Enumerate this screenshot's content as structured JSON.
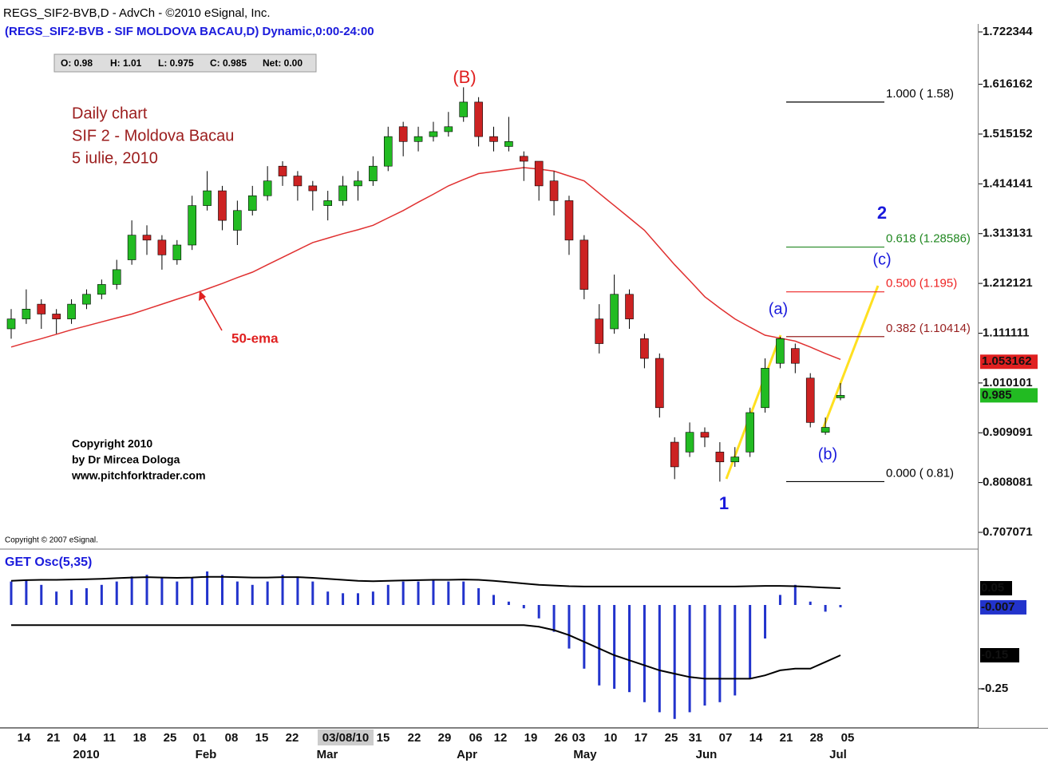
{
  "chart_data": {
    "type": "candlestick",
    "window_title": "REGS_SIF2-BVB,D - AdvCh - ©2010 eSignal, Inc.",
    "title": "(REGS_SIF2-BVB - SIF MOLDOVA BACAU,D) Dynamic,0:00-24:00",
    "ohlc_box": [
      "O: 0.98",
      "H: 1.01",
      "L: 0.975",
      "C: 0.985",
      "Net: 0.00"
    ],
    "notes": [
      "Daily chart",
      "SIF 2 - Moldova Bacau",
      "5 iulie, 2010"
    ],
    "copyright": [
      "Copyright 2010",
      "by Dr Mircea Dologa",
      "www.pitchforktrader.com"
    ],
    "esignal_copyright": "Copyright © 2007 eSignal.",
    "annotations": {
      "B": "(B)",
      "w2": "2",
      "c": "(c)",
      "a": "(a)",
      "b": "(b)",
      "w1": "1",
      "ema": "50-ema"
    },
    "x_labels": [
      "14",
      "21",
      "04",
      "11",
      "18",
      "25",
      "01",
      "08",
      "15",
      "22",
      "03/08/10",
      "15",
      "22",
      "29",
      "06",
      "12",
      "19",
      "26",
      "03",
      "10",
      "17",
      "25",
      "31",
      "07",
      "14",
      "21",
      "28",
      "05"
    ],
    "month_labels": [
      "2010",
      "Feb",
      "Mar",
      "Apr",
      "May",
      "Jun",
      "Jul"
    ],
    "ylim": [
      0.707071,
      1.722344
    ],
    "yticks": [
      1.722344,
      1.616162,
      1.515152,
      1.414141,
      1.313131,
      1.212121,
      1.111111,
      1.010101,
      0.909091,
      0.808081,
      0.707071
    ],
    "price_markers": [
      {
        "value": 1.053162,
        "color": "#e02020"
      },
      {
        "value": 0.985,
        "color": "#22bb22"
      }
    ],
    "fib_levels": [
      {
        "label": "1.000 ( 1.58)",
        "price": 1.58,
        "color": "#000000"
      },
      {
        "label": "0.618 (1.28586)",
        "price": 1.28586,
        "color": "#228822"
      },
      {
        "label": "0.500 (1.195)",
        "price": 1.195,
        "color": "#ee2222"
      },
      {
        "label": "0.382 (1.10414)",
        "price": 1.10414,
        "color": "#992222"
      },
      {
        "label": "0.000 ( 0.81)",
        "price": 0.81,
        "color": "#000000"
      }
    ],
    "up_color": "#22bb22",
    "down_color": "#cc2222",
    "ema_color": "#e03030",
    "candles": [
      [
        1.12,
        1.16,
        1.1,
        1.14
      ],
      [
        1.14,
        1.2,
        1.13,
        1.16
      ],
      [
        1.17,
        1.18,
        1.12,
        1.15
      ],
      [
        1.15,
        1.16,
        1.11,
        1.14
      ],
      [
        1.14,
        1.18,
        1.13,
        1.17
      ],
      [
        1.17,
        1.2,
        1.16,
        1.19
      ],
      [
        1.19,
        1.22,
        1.18,
        1.21
      ],
      [
        1.21,
        1.26,
        1.2,
        1.24
      ],
      [
        1.26,
        1.34,
        1.25,
        1.31
      ],
      [
        1.31,
        1.33,
        1.27,
        1.3
      ],
      [
        1.3,
        1.31,
        1.24,
        1.27
      ],
      [
        1.26,
        1.3,
        1.25,
        1.29
      ],
      [
        1.29,
        1.39,
        1.28,
        1.37
      ],
      [
        1.37,
        1.44,
        1.36,
        1.4
      ],
      [
        1.4,
        1.41,
        1.32,
        1.34
      ],
      [
        1.32,
        1.38,
        1.29,
        1.36
      ],
      [
        1.36,
        1.41,
        1.35,
        1.39
      ],
      [
        1.39,
        1.45,
        1.38,
        1.42
      ],
      [
        1.45,
        1.46,
        1.41,
        1.43
      ],
      [
        1.43,
        1.44,
        1.38,
        1.41
      ],
      [
        1.41,
        1.42,
        1.36,
        1.4
      ],
      [
        1.37,
        1.4,
        1.34,
        1.38
      ],
      [
        1.38,
        1.43,
        1.37,
        1.41
      ],
      [
        1.41,
        1.44,
        1.38,
        1.42
      ],
      [
        1.42,
        1.47,
        1.41,
        1.45
      ],
      [
        1.45,
        1.53,
        1.44,
        1.51
      ],
      [
        1.53,
        1.54,
        1.47,
        1.5
      ],
      [
        1.5,
        1.53,
        1.48,
        1.51
      ],
      [
        1.51,
        1.54,
        1.5,
        1.52
      ],
      [
        1.52,
        1.56,
        1.51,
        1.53
      ],
      [
        1.55,
        1.61,
        1.54,
        1.58
      ],
      [
        1.58,
        1.59,
        1.49,
        1.51
      ],
      [
        1.51,
        1.53,
        1.48,
        1.5
      ],
      [
        1.49,
        1.55,
        1.48,
        1.5
      ],
      [
        1.47,
        1.48,
        1.42,
        1.46
      ],
      [
        1.46,
        1.46,
        1.38,
        1.41
      ],
      [
        1.42,
        1.44,
        1.35,
        1.38
      ],
      [
        1.38,
        1.39,
        1.27,
        1.3
      ],
      [
        1.3,
        1.31,
        1.18,
        1.2
      ],
      [
        1.14,
        1.17,
        1.07,
        1.09
      ],
      [
        1.12,
        1.23,
        1.11,
        1.19
      ],
      [
        1.19,
        1.2,
        1.12,
        1.14
      ],
      [
        1.1,
        1.11,
        1.04,
        1.06
      ],
      [
        1.06,
        1.07,
        0.94,
        0.96
      ],
      [
        0.89,
        0.9,
        0.815,
        0.84
      ],
      [
        0.87,
        0.93,
        0.86,
        0.91
      ],
      [
        0.91,
        0.92,
        0.88,
        0.9
      ],
      [
        0.87,
        0.89,
        0.81,
        0.85
      ],
      [
        0.85,
        0.88,
        0.84,
        0.86
      ],
      [
        0.87,
        0.96,
        0.86,
        0.95
      ],
      [
        0.96,
        1.06,
        0.95,
        1.04
      ],
      [
        1.05,
        1.104,
        1.04,
        1.1
      ],
      [
        1.08,
        1.09,
        1.03,
        1.05
      ],
      [
        1.02,
        1.03,
        0.92,
        0.93
      ],
      [
        0.91,
        0.94,
        0.905,
        0.92
      ],
      [
        0.98,
        1.01,
        0.975,
        0.985
      ]
    ],
    "ema": [
      1.083,
      1.092,
      1.1,
      1.109,
      1.118,
      1.126,
      1.134,
      1.142,
      1.15,
      1.16,
      1.17,
      1.18,
      1.19,
      1.201,
      1.212,
      1.224,
      1.235,
      1.25,
      1.265,
      1.28,
      1.295,
      1.304,
      1.313,
      1.321,
      1.33,
      1.345,
      1.36,
      1.377,
      1.393,
      1.41,
      1.423,
      1.435,
      1.439,
      1.443,
      1.447,
      1.444,
      1.44,
      1.43,
      1.42,
      1.395,
      1.37,
      1.345,
      1.32,
      1.285,
      1.25,
      1.218,
      1.185,
      1.162,
      1.14,
      1.123,
      1.107,
      1.101,
      1.095,
      1.083,
      1.07,
      1.058
    ],
    "osc": {
      "title": "GET Osc(5,35)",
      "ylim": [
        -0.3,
        0.1
      ],
      "yticks": [
        {
          "value": 0.05,
          "label": "0.05",
          "bg": "#000000"
        },
        {
          "value": -0.007,
          "label": "-0.007",
          "bg": "#2233cc"
        },
        {
          "value": -0.15,
          "label": "-0.15",
          "bg": "#000000"
        },
        {
          "value": -0.25,
          "label": "-0.25"
        }
      ],
      "hist_color": "#2233cc",
      "histogram": [
        0.07,
        0.075,
        0.06,
        0.04,
        0.045,
        0.05,
        0.06,
        0.07,
        0.085,
        0.09,
        0.08,
        0.07,
        0.08,
        0.1,
        0.09,
        0.07,
        0.06,
        0.07,
        0.09,
        0.085,
        0.07,
        0.04,
        0.035,
        0.035,
        0.04,
        0.06,
        0.07,
        0.07,
        0.075,
        0.07,
        0.07,
        0.05,
        0.03,
        0.01,
        -0.01,
        -0.04,
        -0.08,
        -0.13,
        -0.19,
        -0.24,
        -0.25,
        -0.26,
        -0.29,
        -0.32,
        -0.34,
        -0.32,
        -0.3,
        -0.29,
        -0.27,
        -0.22,
        -0.1,
        0.03,
        0.06,
        0.01,
        -0.02,
        -0.007
      ],
      "upper_line": [
        0.072,
        0.074,
        0.075,
        0.075,
        0.076,
        0.077,
        0.078,
        0.08,
        0.082,
        0.083,
        0.082,
        0.081,
        0.082,
        0.084,
        0.084,
        0.083,
        0.082,
        0.082,
        0.083,
        0.083,
        0.081,
        0.078,
        0.075,
        0.072,
        0.071,
        0.072,
        0.073,
        0.074,
        0.075,
        0.075,
        0.076,
        0.075,
        0.072,
        0.068,
        0.064,
        0.06,
        0.058,
        0.056,
        0.055,
        0.055,
        0.055,
        0.055,
        0.055,
        0.055,
        0.055,
        0.055,
        0.055,
        0.055,
        0.055,
        0.056,
        0.057,
        0.057,
        0.056,
        0.054,
        0.052,
        0.05
      ],
      "lower_line": [
        -0.06,
        -0.06,
        -0.06,
        -0.06,
        -0.06,
        -0.06,
        -0.06,
        -0.06,
        -0.06,
        -0.06,
        -0.06,
        -0.06,
        -0.06,
        -0.06,
        -0.06,
        -0.06,
        -0.06,
        -0.06,
        -0.06,
        -0.06,
        -0.06,
        -0.06,
        -0.06,
        -0.06,
        -0.06,
        -0.06,
        -0.06,
        -0.06,
        -0.06,
        -0.06,
        -0.06,
        -0.06,
        -0.06,
        -0.06,
        -0.06,
        -0.065,
        -0.075,
        -0.09,
        -0.11,
        -0.13,
        -0.15,
        -0.165,
        -0.18,
        -0.195,
        -0.205,
        -0.215,
        -0.22,
        -0.22,
        -0.22,
        -0.22,
        -0.21,
        -0.195,
        -0.19,
        -0.19,
        -0.17,
        -0.15
      ]
    }
  }
}
